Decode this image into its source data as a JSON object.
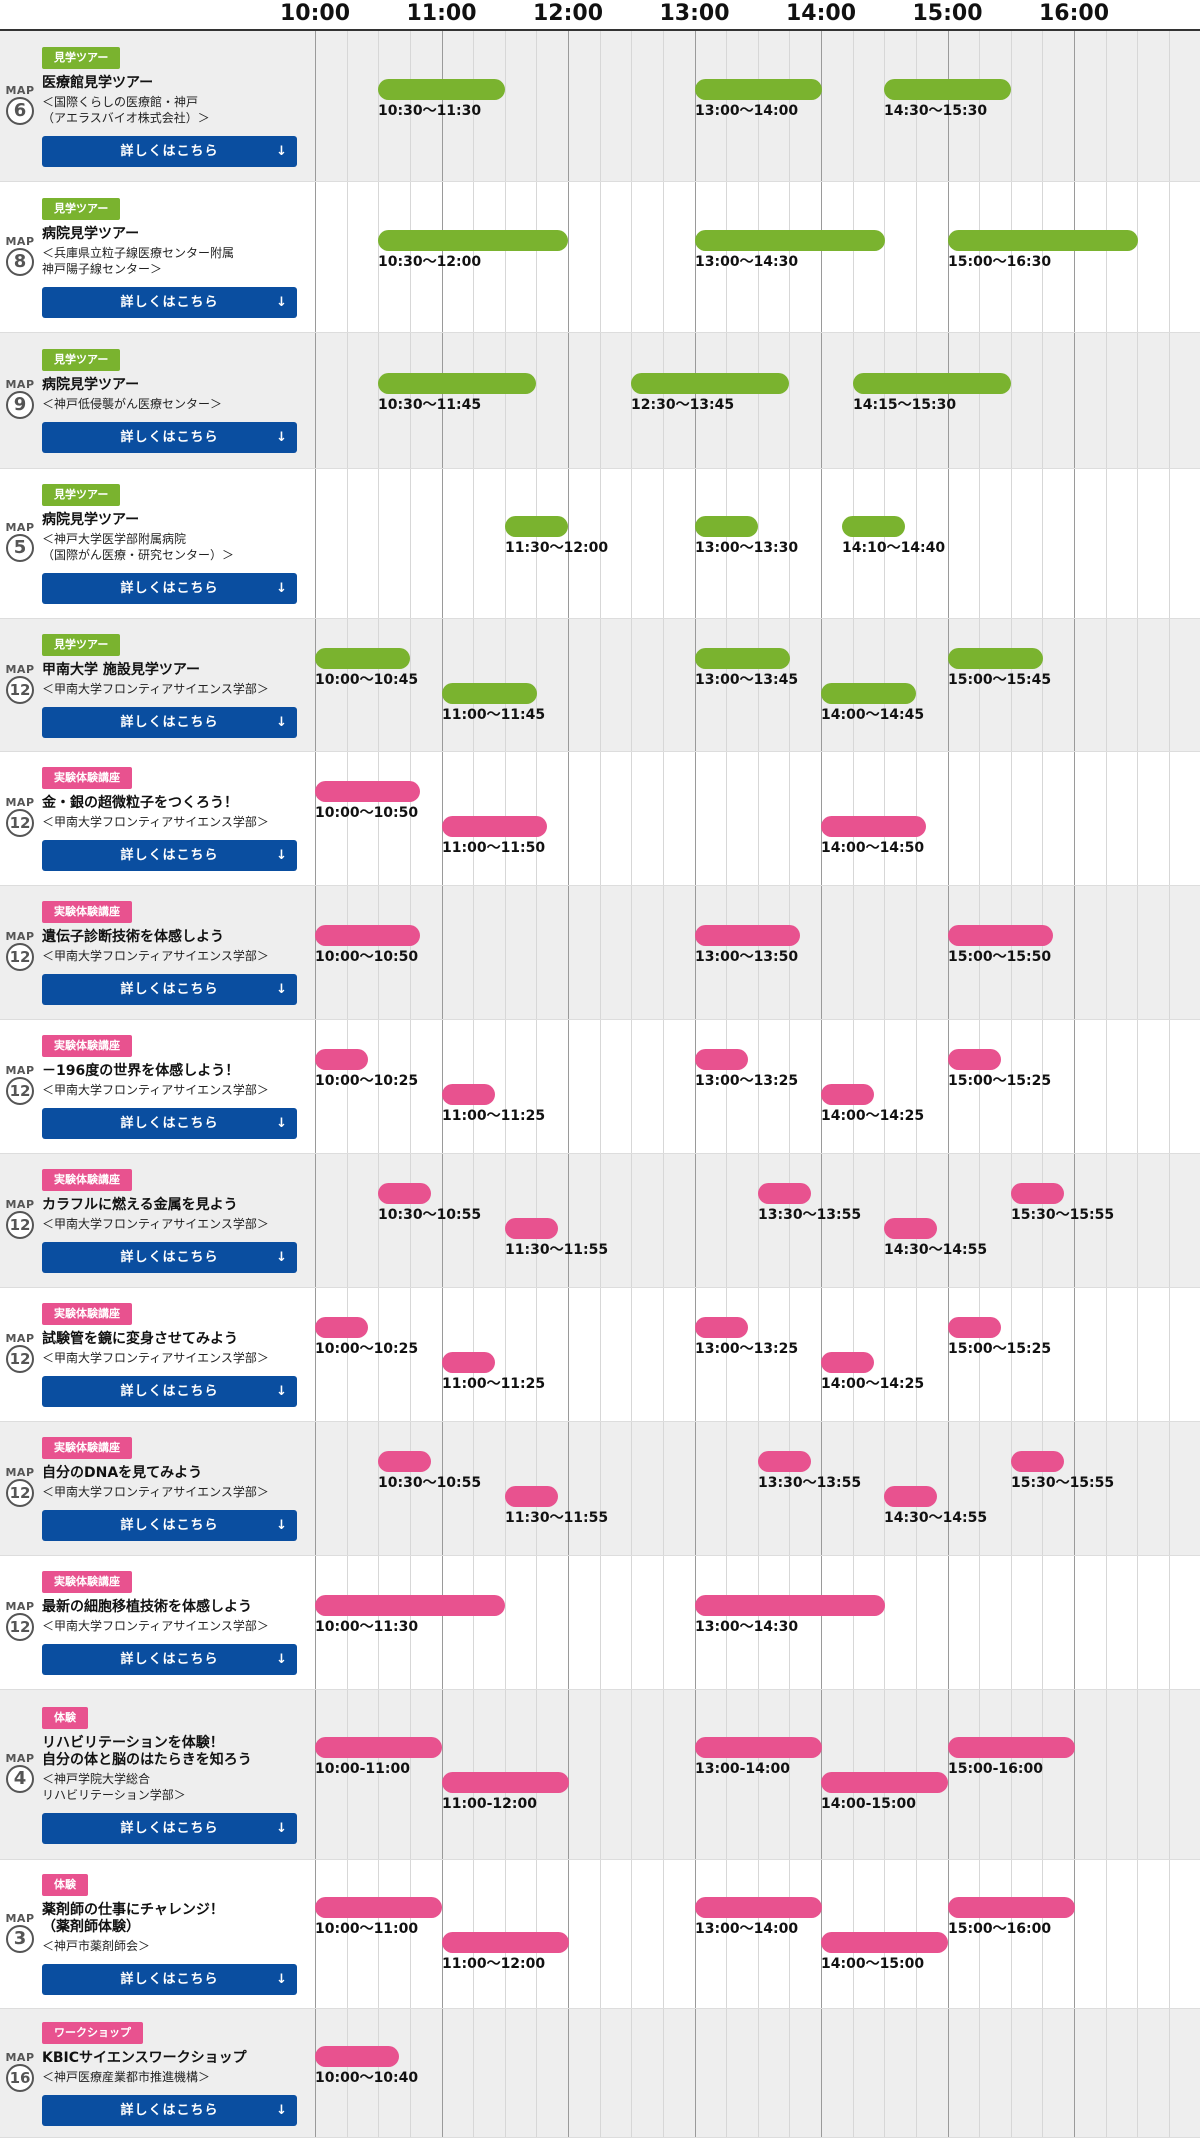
{
  "colors": {
    "tour": "#7ab32f",
    "experiment": "#e8528f",
    "button": "#0a4ea0"
  },
  "timeline": {
    "hours": [
      "10:00",
      "11:00",
      "12:00",
      "13:00",
      "14:00",
      "15:00",
      "16:00"
    ]
  },
  "rows": [
    {
      "map_label": "MAP",
      "map": "6",
      "badge": "見学ツアー",
      "kind": "tour",
      "title": [
        "医療館見学ツアー"
      ],
      "sub": [
        "＜国際くらしの医療館・神戸",
        "（アエラスバイオ株式会社）＞"
      ],
      "button": "詳しくはこちら",
      "sessions": [
        {
          "start": "10:30",
          "end": "11:30",
          "label": "10:30〜11:30",
          "lane": 0
        },
        {
          "start": "13:00",
          "end": "14:00",
          "label": "13:00〜14:00",
          "lane": 0
        },
        {
          "start": "14:30",
          "end": "15:30",
          "label": "14:30〜15:30",
          "lane": 0
        }
      ]
    },
    {
      "map_label": "MAP",
      "map": "8",
      "badge": "見学ツアー",
      "kind": "tour",
      "title": [
        "病院見学ツアー"
      ],
      "sub": [
        "＜兵庫県立粒子線医療センター附属",
        "神戸陽子線センター＞"
      ],
      "button": "詳しくはこちら",
      "sessions": [
        {
          "start": "10:30",
          "end": "12:00",
          "label": "10:30〜12:00",
          "lane": 0
        },
        {
          "start": "13:00",
          "end": "14:30",
          "label": "13:00〜14:30",
          "lane": 0
        },
        {
          "start": "15:00",
          "end": "16:30",
          "label": "15:00〜16:30",
          "lane": 0
        }
      ]
    },
    {
      "map_label": "MAP",
      "map": "9",
      "badge": "見学ツアー",
      "kind": "tour",
      "title": [
        "病院見学ツアー"
      ],
      "sub": [
        "＜神戸低侵襲がん医療センター＞"
      ],
      "button": "詳しくはこちら",
      "sessions": [
        {
          "start": "10:30",
          "end": "11:45",
          "label": "10:30〜11:45",
          "lane": 0
        },
        {
          "start": "12:30",
          "end": "13:45",
          "label": "12:30〜13:45",
          "lane": 0
        },
        {
          "start": "14:15",
          "end": "15:30",
          "label": "14:15〜15:30",
          "lane": 0
        }
      ]
    },
    {
      "map_label": "MAP",
      "map": "5",
      "badge": "見学ツアー",
      "kind": "tour",
      "title": [
        "病院見学ツアー"
      ],
      "sub": [
        "＜神戸大学医学部附属病院",
        "（国際がん医療・研究センター）＞"
      ],
      "button": "詳しくはこちら",
      "sessions": [
        {
          "start": "11:30",
          "end": "12:00",
          "label": "11:30〜12:00",
          "lane": 0
        },
        {
          "start": "13:00",
          "end": "13:30",
          "label": "13:00〜13:30",
          "lane": 0
        },
        {
          "start": "14:10",
          "end": "14:40",
          "label": "14:10〜14:40",
          "lane": 0
        }
      ]
    },
    {
      "map_label": "MAP",
      "map": "12",
      "badge": "見学ツアー",
      "kind": "tour",
      "title": [
        "甲南大学 施設見学ツアー"
      ],
      "sub": [
        "＜甲南大学フロンティアサイエンス学部＞"
      ],
      "button": "詳しくはこちら",
      "sessions": [
        {
          "start": "10:00",
          "end": "10:45",
          "label": "10:00〜10:45",
          "lane": 0
        },
        {
          "start": "11:00",
          "end": "11:45",
          "label": "11:00〜11:45",
          "lane": 1
        },
        {
          "start": "13:00",
          "end": "13:45",
          "label": "13:00〜13:45",
          "lane": 0
        },
        {
          "start": "14:00",
          "end": "14:45",
          "label": "14:00〜14:45",
          "lane": 1
        },
        {
          "start": "15:00",
          "end": "15:45",
          "label": "15:00〜15:45",
          "lane": 0
        }
      ]
    },
    {
      "map_label": "MAP",
      "map": "12",
      "badge": "実験体験講座",
      "kind": "exp",
      "title": [
        "金・銀の超微粒子をつくろう！"
      ],
      "sub": [
        "＜甲南大学フロンティアサイエンス学部＞"
      ],
      "button": "詳しくはこちら",
      "sessions": [
        {
          "start": "10:00",
          "end": "10:50",
          "label": "10:00〜10:50",
          "lane": 0
        },
        {
          "start": "11:00",
          "end": "11:50",
          "label": "11:00〜11:50",
          "lane": 1
        },
        {
          "start": "14:00",
          "end": "14:50",
          "label": "14:00〜14:50",
          "lane": 1
        }
      ]
    },
    {
      "map_label": "MAP",
      "map": "12",
      "badge": "実験体験講座",
      "kind": "exp",
      "title": [
        "遺伝子診断技術を体感しよう"
      ],
      "sub": [
        "＜甲南大学フロンティアサイエンス学部＞"
      ],
      "button": "詳しくはこちら",
      "sessions": [
        {
          "start": "10:00",
          "end": "10:50",
          "label": "10:00〜10:50",
          "lane": 0
        },
        {
          "start": "13:00",
          "end": "13:50",
          "label": "13:00〜13:50",
          "lane": 0
        },
        {
          "start": "15:00",
          "end": "15:50",
          "label": "15:00〜15:50",
          "lane": 0
        }
      ]
    },
    {
      "map_label": "MAP",
      "map": "12",
      "badge": "実験体験講座",
      "kind": "exp",
      "title": [
        "－196度の世界を体感しよう！"
      ],
      "sub": [
        "＜甲南大学フロンティアサイエンス学部＞"
      ],
      "button": "詳しくはこちら",
      "sessions": [
        {
          "start": "10:00",
          "end": "10:25",
          "label": "10:00〜10:25",
          "lane": 0
        },
        {
          "start": "11:00",
          "end": "11:25",
          "label": "11:00〜11:25",
          "lane": 1
        },
        {
          "start": "13:00",
          "end": "13:25",
          "label": "13:00〜13:25",
          "lane": 0
        },
        {
          "start": "14:00",
          "end": "14:25",
          "label": "14:00〜14:25",
          "lane": 1
        },
        {
          "start": "15:00",
          "end": "15:25",
          "label": "15:00〜15:25",
          "lane": 0
        }
      ]
    },
    {
      "map_label": "MAP",
      "map": "12",
      "badge": "実験体験講座",
      "kind": "exp",
      "title": [
        "カラフルに燃える金属を見よう"
      ],
      "sub": [
        "＜甲南大学フロンティアサイエンス学部＞"
      ],
      "button": "詳しくはこちら",
      "sessions": [
        {
          "start": "10:30",
          "end": "10:55",
          "label": "10:30〜10:55",
          "lane": 0
        },
        {
          "start": "11:30",
          "end": "11:55",
          "label": "11:30〜11:55",
          "lane": 1
        },
        {
          "start": "13:30",
          "end": "13:55",
          "label": "13:30〜13:55",
          "lane": 0
        },
        {
          "start": "14:30",
          "end": "14:55",
          "label": "14:30〜14:55",
          "lane": 1
        },
        {
          "start": "15:30",
          "end": "15:55",
          "label": "15:30〜15:55",
          "lane": 0
        }
      ]
    },
    {
      "map_label": "MAP",
      "map": "12",
      "badge": "実験体験講座",
      "kind": "exp",
      "title": [
        "試験管を鏡に変身させてみよう"
      ],
      "sub": [
        "＜甲南大学フロンティアサイエンス学部＞"
      ],
      "button": "詳しくはこちら",
      "sessions": [
        {
          "start": "10:00",
          "end": "10:25",
          "label": "10:00〜10:25",
          "lane": 0
        },
        {
          "start": "11:00",
          "end": "11:25",
          "label": "11:00〜11:25",
          "lane": 1
        },
        {
          "start": "13:00",
          "end": "13:25",
          "label": "13:00〜13:25",
          "lane": 0
        },
        {
          "start": "14:00",
          "end": "14:25",
          "label": "14:00〜14:25",
          "lane": 1
        },
        {
          "start": "15:00",
          "end": "15:25",
          "label": "15:00〜15:25",
          "lane": 0
        }
      ]
    },
    {
      "map_label": "MAP",
      "map": "12",
      "badge": "実験体験講座",
      "kind": "exp",
      "title": [
        "自分のDNAを見てみよう"
      ],
      "sub": [
        "＜甲南大学フロンティアサイエンス学部＞"
      ],
      "button": "詳しくはこちら",
      "sessions": [
        {
          "start": "10:30",
          "end": "10:55",
          "label": "10:30〜10:55",
          "lane": 0
        },
        {
          "start": "11:30",
          "end": "11:55",
          "label": "11:30〜11:55",
          "lane": 1
        },
        {
          "start": "13:30",
          "end": "13:55",
          "label": "13:30〜13:55",
          "lane": 0
        },
        {
          "start": "14:30",
          "end": "14:55",
          "label": "14:30〜14:55",
          "lane": 1
        },
        {
          "start": "15:30",
          "end": "15:55",
          "label": "15:30〜15:55",
          "lane": 0
        }
      ]
    },
    {
      "map_label": "MAP",
      "map": "12",
      "badge": "実験体験講座",
      "kind": "exp",
      "title": [
        "最新の細胞移植技術を体感しよう"
      ],
      "sub": [
        "＜甲南大学フロンティアサイエンス学部＞"
      ],
      "button": "詳しくはこちら",
      "sessions": [
        {
          "start": "10:00",
          "end": "11:30",
          "label": "10:00〜11:30",
          "lane": 0
        },
        {
          "start": "13:00",
          "end": "14:30",
          "label": "13:00〜14:30",
          "lane": 0
        }
      ]
    },
    {
      "map_label": "MAP",
      "map": "4",
      "badge": "体験",
      "kind": "exp",
      "title": [
        "リハビリテーションを体験！",
        "自分の体と脳のはたらきを知ろう"
      ],
      "sub": [
        "＜神戸学院大学総合",
        "リハビリテーション学部＞"
      ],
      "button": "詳しくはこちら",
      "sessions": [
        {
          "start": "10:00",
          "end": "11:00",
          "label": "10:00-11:00",
          "lane": 0
        },
        {
          "start": "11:00",
          "end": "12:00",
          "label": "11:00-12:00",
          "lane": 1
        },
        {
          "start": "13:00",
          "end": "14:00",
          "label": "13:00-14:00",
          "lane": 0
        },
        {
          "start": "14:00",
          "end": "15:00",
          "label": "14:00-15:00",
          "lane": 1
        },
        {
          "start": "15:00",
          "end": "16:00",
          "label": "15:00-16:00",
          "lane": 0
        }
      ]
    },
    {
      "map_label": "MAP",
      "map": "3",
      "badge": "体験",
      "kind": "exp",
      "title": [
        "薬剤師の仕事にチャレンジ！",
        "（薬剤師体験）"
      ],
      "sub": [
        "＜神戸市薬剤師会＞"
      ],
      "button": "詳しくはこちら",
      "sessions": [
        {
          "start": "10:00",
          "end": "11:00",
          "label": "10:00〜11:00",
          "lane": 0
        },
        {
          "start": "11:00",
          "end": "12:00",
          "label": "11:00〜12:00",
          "lane": 1
        },
        {
          "start": "13:00",
          "end": "14:00",
          "label": "13:00〜14:00",
          "lane": 0
        },
        {
          "start": "14:00",
          "end": "15:00",
          "label": "14:00〜15:00",
          "lane": 1
        },
        {
          "start": "15:00",
          "end": "16:00",
          "label": "15:00〜16:00",
          "lane": 0
        }
      ]
    },
    {
      "map_label": "MAP",
      "map": "16",
      "badge": "ワークショップ",
      "kind": "exp",
      "title": [
        "KBICサイエンスワークショップ"
      ],
      "sub": [
        "＜神戸医療産業都市推進機構＞"
      ],
      "button": "詳しくはこちら",
      "sessions": [
        {
          "start": "10:00",
          "end": "10:40",
          "label": "10:00〜10:40",
          "lane": 0
        }
      ]
    }
  ]
}
